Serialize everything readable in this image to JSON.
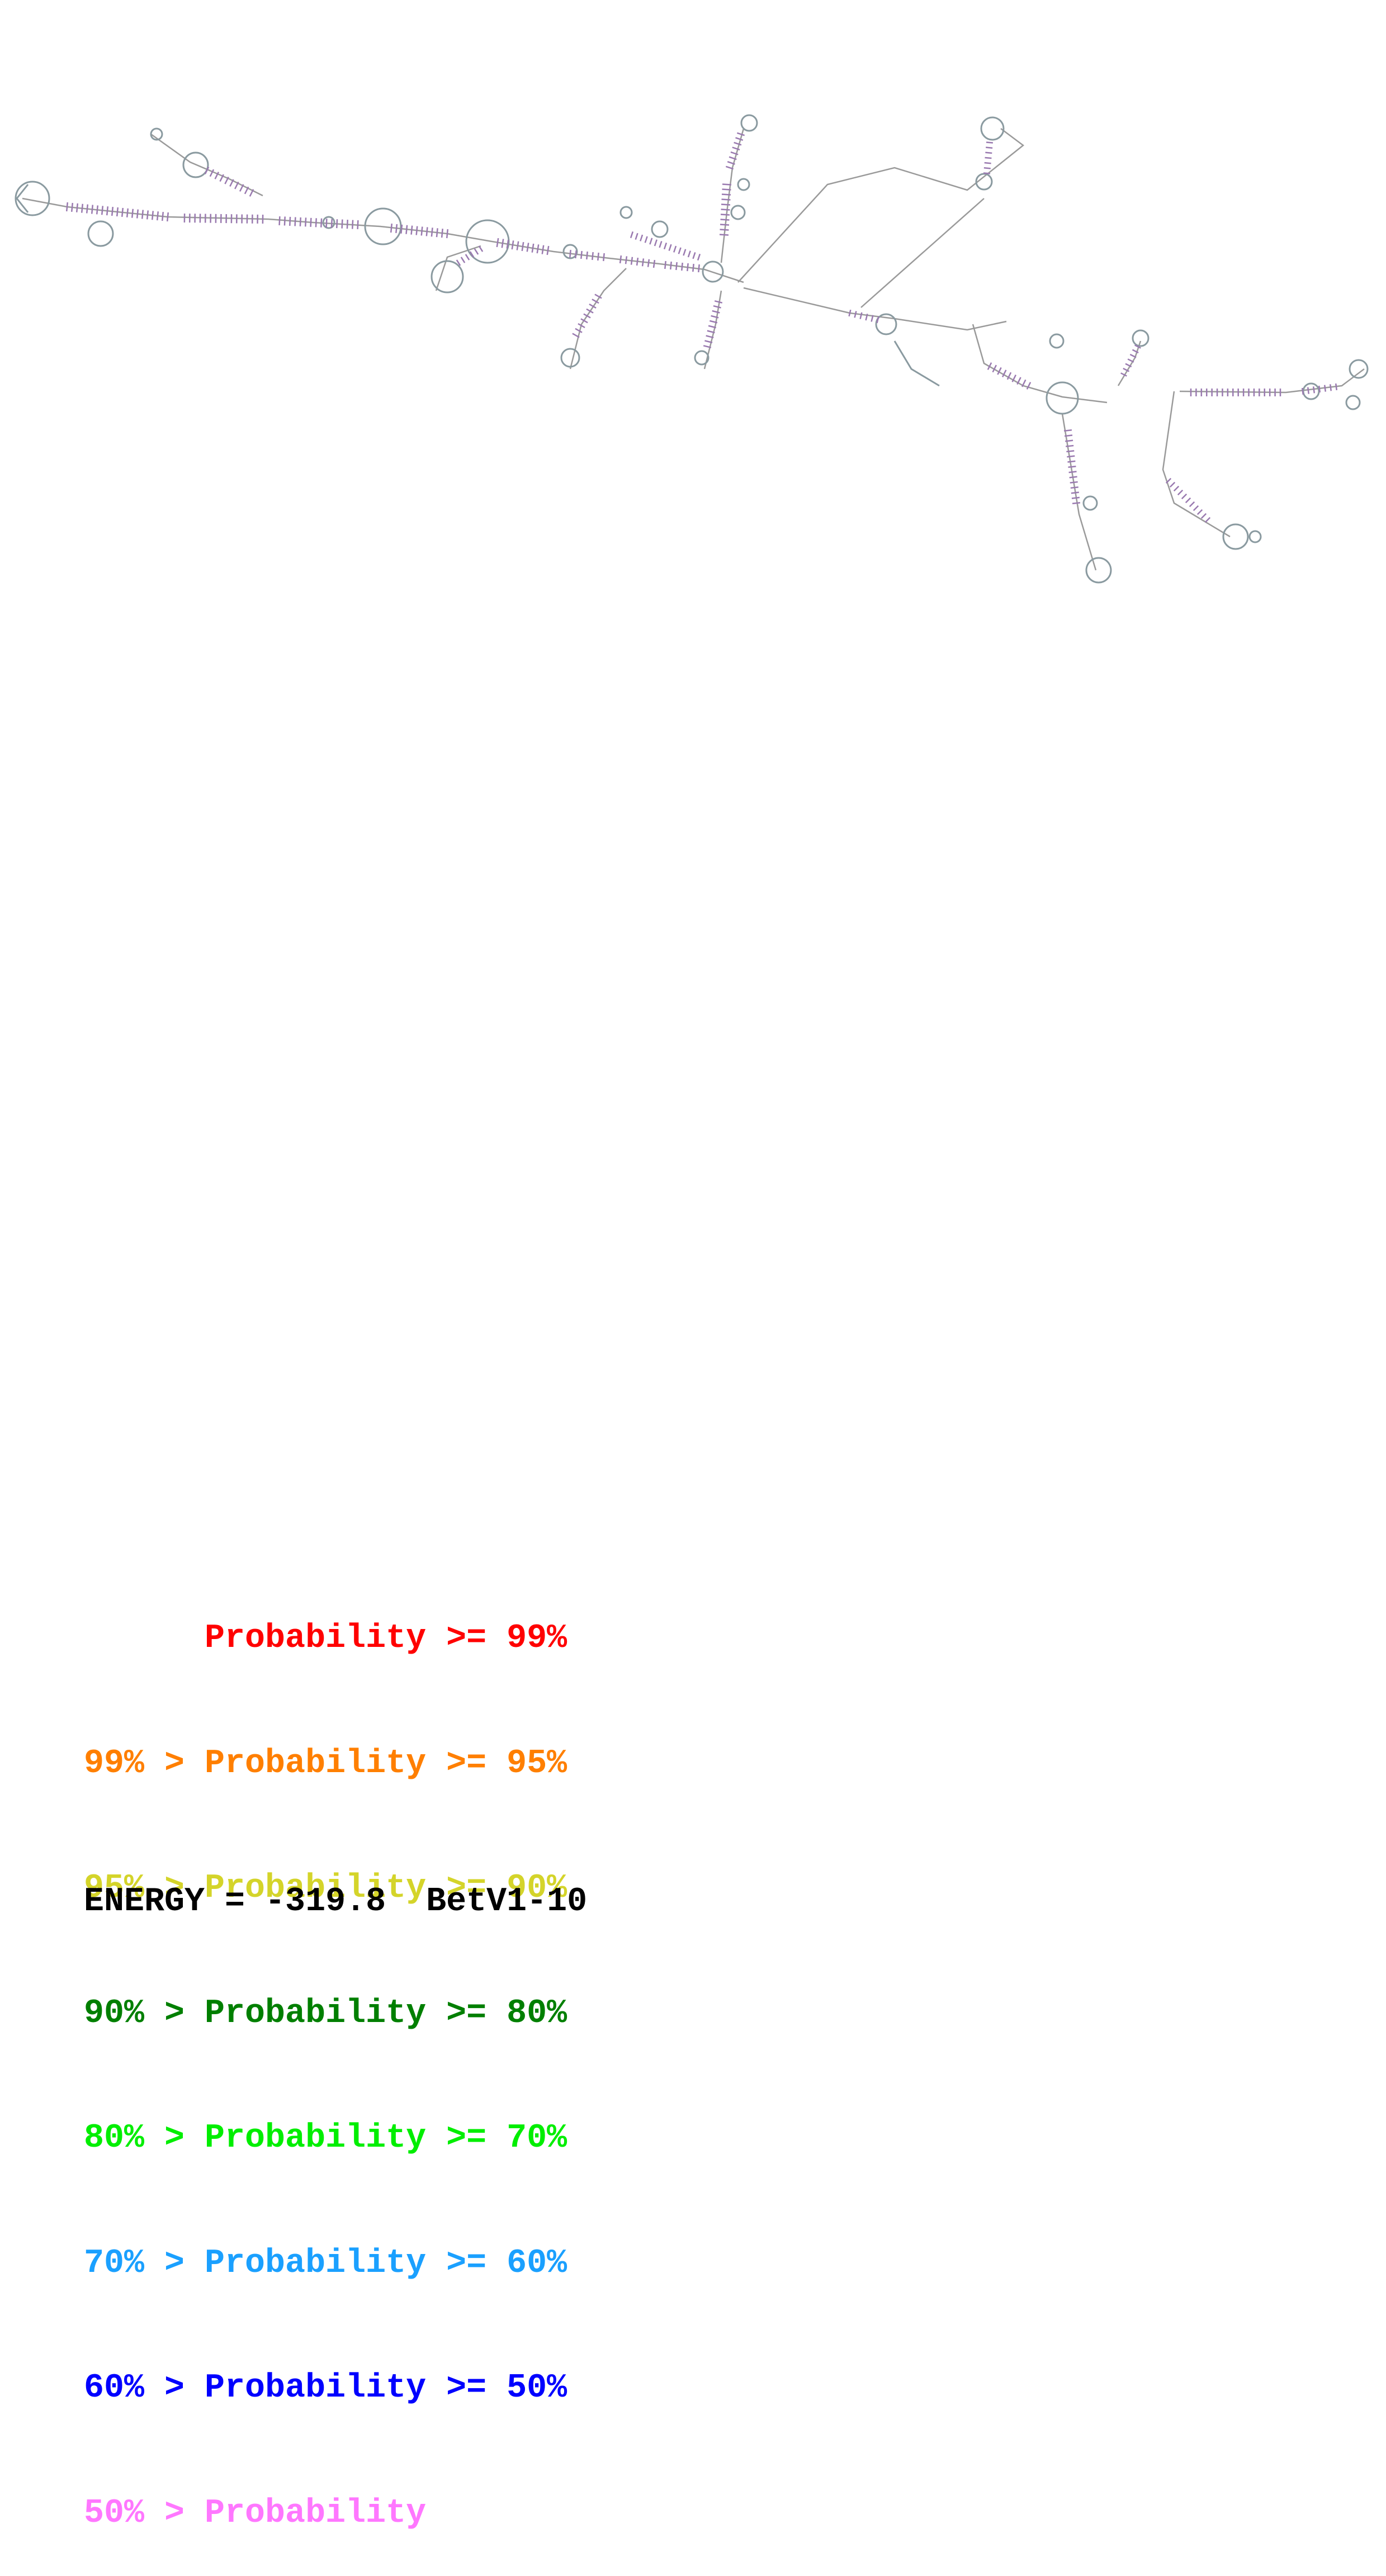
{
  "legend": {
    "rows": [
      {
        "text": "      Probability >= 99%",
        "color": "#ff0000"
      },
      {
        "text": "99% > Probability >= 95%",
        "color": "#ff7f00"
      },
      {
        "text": "95% > Probability >= 90%",
        "color": "#d4d42a"
      },
      {
        "text": "90% > Probability >= 80%",
        "color": "#007f00"
      },
      {
        "text": "80% > Probability >= 70%",
        "color": "#00ee00"
      },
      {
        "text": "70% > Probability >= 60%",
        "color": "#1aa0ff"
      },
      {
        "text": "60% > Probability >= 50%",
        "color": "#0000ff"
      },
      {
        "text": "50% > Probability",
        "color": "#ff77ff"
      }
    ]
  },
  "energy": {
    "label": "ENERGY = -319.8",
    "name": "BetV1-10"
  },
  "structure": {
    "backbone_color": "#9a9a9a",
    "pair_color": "#9a7ab0",
    "loop_color": "#8a9aa0"
  }
}
